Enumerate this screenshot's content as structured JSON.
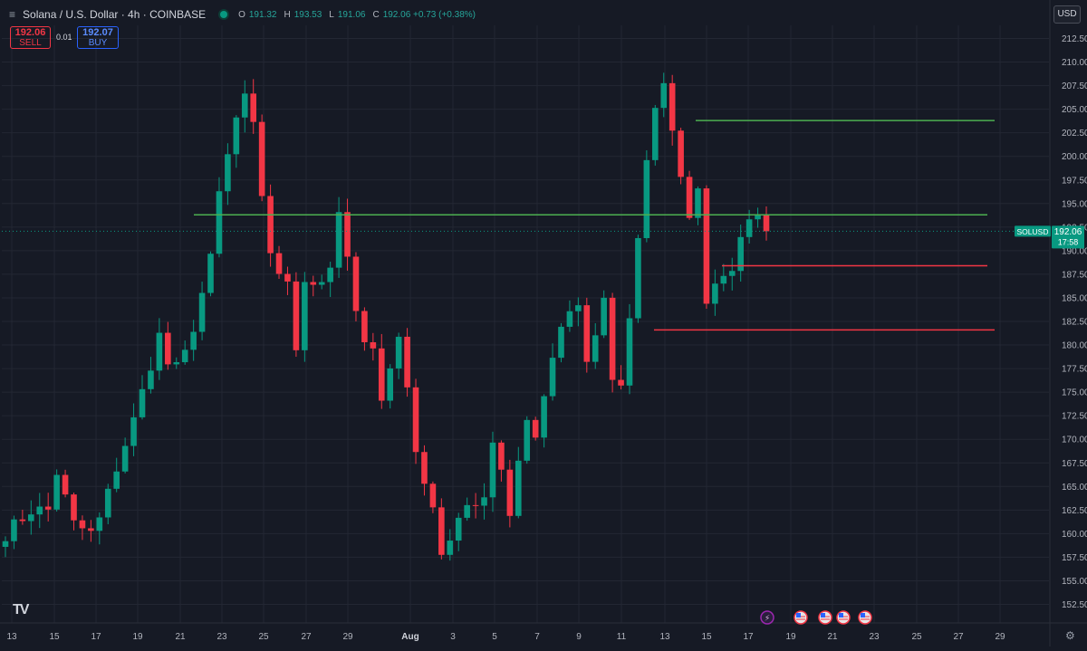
{
  "header": {
    "menu_icon": "menu-icon",
    "title": "Solana / U.S. Dollar · 4h · COINBASE",
    "status_color": "#089981",
    "ohlc": [
      {
        "label": "O",
        "value": "191.32"
      },
      {
        "label": "H",
        "value": "193.53"
      },
      {
        "label": "L",
        "value": "191.06"
      },
      {
        "label": "C",
        "value": "192.06 +0.73 (+0.38%)"
      }
    ]
  },
  "trade": {
    "sell_price": "192.06",
    "sell_label": "SELL",
    "spread": "0.01",
    "buy_price": "192.07",
    "buy_label": "BUY"
  },
  "currency": "USD",
  "logo": "TV",
  "settings_icon": "gear-icon",
  "chart_data": {
    "type": "candlestick",
    "symbol": "SOLUSD",
    "interval": "4h",
    "last_price": "192.06",
    "countdown": "17:58",
    "ylim": [
      151.0,
      214.0
    ],
    "y_ticks": [
      "212.50",
      "210.00",
      "207.50",
      "205.00",
      "202.50",
      "200.00",
      "197.50",
      "195.00",
      "192.50",
      "190.00",
      "187.50",
      "185.00",
      "182.50",
      "180.00",
      "177.50",
      "175.00",
      "172.50",
      "170.00",
      "167.50",
      "165.00",
      "162.50",
      "160.00",
      "157.50",
      "155.00",
      "152.50"
    ],
    "x_ticks": [
      "13",
      "15",
      "17",
      "19",
      "21",
      "23",
      "25",
      "27",
      "29",
      "Aug",
      "3",
      "5",
      "7",
      "9",
      "11",
      "13",
      "15",
      "17",
      "19",
      "21",
      "23",
      "25",
      "27",
      "29"
    ],
    "colors": {
      "up": "#089981",
      "down": "#f23645",
      "support": "#4caf50",
      "resistance": "#f23645"
    },
    "close_path": [
      [
        0,
        160
      ],
      [
        3,
        162.5
      ],
      [
        5,
        162.5
      ],
      [
        6,
        166.5
      ],
      [
        8,
        161
      ],
      [
        10,
        160
      ],
      [
        11,
        161.5
      ],
      [
        13,
        167
      ],
      [
        15,
        172
      ],
      [
        16,
        175
      ],
      [
        17,
        178
      ],
      [
        18,
        181
      ],
      [
        19,
        178
      ],
      [
        20,
        177.5
      ],
      [
        21,
        179
      ],
      [
        22,
        182
      ],
      [
        24,
        189
      ],
      [
        25,
        196
      ],
      [
        26,
        200
      ],
      [
        27,
        204
      ],
      [
        28,
        206
      ],
      [
        29,
        203
      ],
      [
        30,
        196
      ],
      [
        31,
        190
      ],
      [
        32,
        187
      ],
      [
        33,
        187
      ],
      [
        34,
        180
      ],
      [
        35,
        187
      ],
      [
        36,
        186.5
      ],
      [
        37,
        187
      ],
      [
        38,
        187.5
      ],
      [
        39,
        194
      ],
      [
        40,
        189
      ],
      [
        41,
        183
      ],
      [
        42,
        181
      ],
      [
        43,
        180
      ],
      [
        44,
        174
      ],
      [
        46,
        181
      ],
      [
        47,
        176
      ],
      [
        48,
        168
      ],
      [
        49,
        166
      ],
      [
        50,
        163
      ],
      [
        51,
        158
      ],
      [
        52,
        159
      ],
      [
        53,
        161
      ],
      [
        54,
        163
      ],
      [
        56,
        164
      ],
      [
        57,
        170
      ],
      [
        58,
        167
      ],
      [
        59,
        162
      ],
      [
        60,
        168
      ],
      [
        61,
        172
      ],
      [
        62,
        170
      ],
      [
        63,
        175
      ],
      [
        64,
        178
      ],
      [
        65,
        182
      ],
      [
        66,
        183
      ],
      [
        67,
        184
      ],
      [
        68,
        178
      ],
      [
        69,
        181
      ],
      [
        70,
        185
      ],
      [
        71,
        176
      ],
      [
        72,
        175
      ],
      [
        73,
        183
      ],
      [
        74,
        191
      ],
      [
        75,
        200
      ],
      [
        76,
        205
      ],
      [
        77,
        208
      ],
      [
        78,
        203
      ],
      [
        79,
        198
      ],
      [
        80,
        193
      ],
      [
        81,
        196
      ],
      [
        82,
        185
      ],
      [
        83,
        186
      ],
      [
        84,
        188
      ],
      [
        85,
        188
      ],
      [
        86,
        192
      ],
      [
        87,
        194
      ],
      [
        88,
        193
      ],
      [
        89,
        192.06
      ]
    ],
    "levels": [
      {
        "kind": "support",
        "value": 193.8,
        "from": "21",
        "to": "28"
      },
      {
        "kind": "support",
        "value": 203.8,
        "from": "14",
        "to": "28"
      },
      {
        "kind": "resistance",
        "value": 188.4,
        "from": "15",
        "to": "28"
      },
      {
        "kind": "resistance",
        "value": 181.6,
        "from": "13",
        "to": "28"
      }
    ],
    "event_icons": [
      "lightning-icon",
      "us-flag-icon",
      "us-flag-icon",
      "us-flag-icon",
      "us-flag-icon"
    ]
  }
}
